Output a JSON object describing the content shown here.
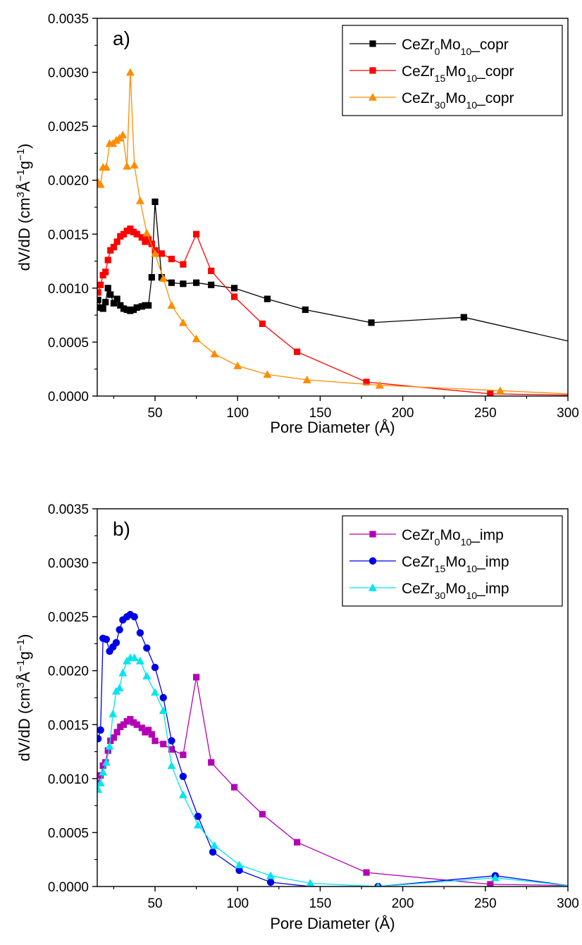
{
  "chart_data": [
    {
      "type": "line",
      "panel_label": "a)",
      "xlabel": "Pore Diameter (Å)",
      "ylabel": {
        "base": "dV/dD (cm",
        "sup1": "3",
        "mid1": "Å",
        "sup2": "−1",
        "mid2": "g",
        "sup3": "−1",
        "end": ")"
      },
      "xlim": [
        15,
        300
      ],
      "ylim": [
        0,
        0.0035
      ],
      "xticks": [
        50,
        100,
        150,
        200,
        250,
        300
      ],
      "xtick_labels": [
        "50",
        "100",
        "150",
        "200",
        "250",
        "300"
      ],
      "yticks": [
        0,
        0.0005,
        0.001,
        0.0015,
        0.002,
        0.0025,
        0.003,
        0.0035
      ],
      "ytick_labels": [
        "0.0000",
        "0.0005",
        "0.0010",
        "0.0015",
        "0.0020",
        "0.0025",
        "0.0030",
        "0.0035"
      ],
      "legend_position": "top-right",
      "grid": false,
      "series": [
        {
          "name": "CeZr0Mo10_copr",
          "label_parts": [
            "CeZr",
            "0",
            "Mo",
            "10",
            "_copr"
          ],
          "color": "#000000",
          "marker": "square",
          "x": [
            15.5,
            17,
            18.5,
            20,
            21.5,
            23,
            25,
            27,
            29,
            31,
            33,
            35,
            37,
            39,
            42,
            44,
            46,
            48,
            50,
            54,
            60,
            67,
            75,
            84,
            98,
            118,
            141,
            181,
            237,
            300
          ],
          "y": [
            0.00089,
            0.00082,
            0.00081,
            0.00087,
            0.001,
            0.00094,
            0.00086,
            0.0009,
            0.00084,
            0.00081,
            0.0008,
            0.00079,
            0.0008,
            0.00082,
            0.00083,
            0.00084,
            0.00084,
            0.0011,
            0.0018,
            0.0011,
            0.00105,
            0.00104,
            0.00105,
            0.00103,
            0.001,
            0.0009,
            0.0008,
            0.00068,
            0.00073,
            0.00051
          ]
        },
        {
          "name": "CeZr15Mo10_copr",
          "label_parts": [
            "CeZr",
            "15",
            "Mo",
            "10",
            "_copr"
          ],
          "color": "#ff0000",
          "marker": "square",
          "x": [
            15.5,
            17,
            18.5,
            20,
            21.5,
            23,
            25,
            27,
            29,
            31,
            33,
            35,
            37,
            39,
            42,
            44,
            46,
            48,
            50,
            54,
            60,
            67,
            75,
            84,
            98,
            115,
            136,
            178,
            253,
            300
          ],
          "y": [
            0.00096,
            0.00103,
            0.00112,
            0.00115,
            0.00126,
            0.00135,
            0.00138,
            0.00143,
            0.00148,
            0.0015,
            0.00153,
            0.00155,
            0.00152,
            0.0015,
            0.00147,
            0.00143,
            0.00145,
            0.00141,
            0.00135,
            0.00132,
            0.00127,
            0.00122,
            0.0015,
            0.00116,
            0.00092,
            0.00067,
            0.00041,
            0.00013,
            2e-05,
            1e-05
          ]
        },
        {
          "name": "CeZr30Mo10_copr",
          "label_parts": [
            "CeZr",
            "30",
            "Mo",
            "10",
            "_copr"
          ],
          "color": "#ff8c00",
          "marker": "triangle",
          "x": [
            15.5,
            17,
            18.5,
            20.5,
            22.5,
            24.5,
            26.5,
            28.5,
            30.5,
            33,
            35,
            37.5,
            41,
            45,
            50,
            55,
            60,
            67,
            75,
            86,
            100,
            118,
            142,
            186,
            259,
            300
          ],
          "y": [
            0.00198,
            0.00196,
            0.00212,
            0.00212,
            0.00234,
            0.00234,
            0.00237,
            0.00239,
            0.00242,
            0.00213,
            0.003,
            0.00214,
            0.00181,
            0.00151,
            0.00132,
            0.00109,
            0.00084,
            0.00068,
            0.00053,
            0.00039,
            0.00028,
            0.0002,
            0.00015,
            0.0001,
            5e-05,
            2e-05
          ]
        }
      ]
    },
    {
      "type": "line",
      "panel_label": "b)",
      "xlabel": "Pore Diameter (Å)",
      "ylabel": {
        "base": "dV/dD (cm",
        "sup1": "3",
        "mid1": "Å",
        "sup2": "−1",
        "mid2": "g",
        "sup3": "−1",
        "end": ")"
      },
      "xlim": [
        15,
        300
      ],
      "ylim": [
        0,
        0.0035
      ],
      "xticks": [
        50,
        100,
        150,
        200,
        250,
        300
      ],
      "xtick_labels": [
        "50",
        "100",
        "150",
        "200",
        "250",
        "300"
      ],
      "yticks": [
        0,
        0.0005,
        0.001,
        0.0015,
        0.002,
        0.0025,
        0.003,
        0.0035
      ],
      "ytick_labels": [
        "0.0000",
        "0.0005",
        "0.0010",
        "0.0015",
        "0.0020",
        "0.0025",
        "0.0030",
        "0.0035"
      ],
      "legend_position": "top-right",
      "grid": false,
      "series": [
        {
          "name": "CeZr0Mo10_imp",
          "label_parts": [
            "CeZr",
            "0",
            "Mo",
            "10",
            "_imp"
          ],
          "color": "#b400b4",
          "marker": "square",
          "x": [
            15.5,
            17,
            18.5,
            20,
            21.5,
            23,
            25,
            27,
            29,
            31,
            33,
            35,
            37,
            39,
            42,
            44,
            46,
            48,
            50,
            55,
            60,
            67,
            75,
            84,
            98,
            115,
            136,
            178,
            253,
            300
          ],
          "y": [
            0.00096,
            0.00103,
            0.00112,
            0.00115,
            0.00126,
            0.00135,
            0.00138,
            0.00143,
            0.00148,
            0.0015,
            0.00153,
            0.00155,
            0.00152,
            0.0015,
            0.00147,
            0.00143,
            0.00145,
            0.00141,
            0.00135,
            0.00132,
            0.00127,
            0.00122,
            0.00194,
            0.00115,
            0.00092,
            0.00067,
            0.00041,
            0.00013,
            2e-05,
            1e-05
          ]
        },
        {
          "name": "CeZr15Mo10_imp",
          "label_parts": [
            "CeZr",
            "15",
            "Mo",
            "10",
            "_imp"
          ],
          "color": "#0000e6",
          "marker": "circle",
          "x": [
            15.5,
            17,
            18.5,
            20.5,
            22.5,
            24.5,
            26.5,
            28.5,
            30.5,
            33,
            35,
            37.5,
            41,
            45,
            50,
            55,
            60,
            67,
            76,
            85,
            101,
            120,
            144,
            185,
            256,
            300
          ],
          "y": [
            0.00137,
            0.00145,
            0.0023,
            0.00229,
            0.00218,
            0.00222,
            0.00226,
            0.00238,
            0.00247,
            0.0025,
            0.00252,
            0.0025,
            0.00235,
            0.00221,
            0.00203,
            0.00175,
            0.00135,
            0.00102,
            0.00065,
            0.00032,
            0.00015,
            4e-05,
            0.0,
            0.0,
            0.0001,
            1e-05
          ]
        },
        {
          "name": "CeZr30Mo10_imp",
          "label_parts": [
            "CeZr",
            "30",
            "Mo",
            "10",
            "_imp"
          ],
          "color": "#00e5ee",
          "marker": "triangle",
          "x": [
            15.5,
            17,
            18.5,
            20.5,
            22.5,
            24.5,
            26.5,
            28.5,
            30.5,
            33,
            35,
            37.5,
            41,
            45,
            50,
            55,
            60,
            67,
            76,
            86,
            101,
            120,
            144,
            185,
            256,
            300
          ],
          "y": [
            0.0009,
            0.00096,
            0.00106,
            0.00115,
            0.0013,
            0.0016,
            0.00181,
            0.00184,
            0.00198,
            0.00209,
            0.00212,
            0.00212,
            0.00209,
            0.00195,
            0.0018,
            0.00163,
            0.00112,
            0.00085,
            0.00057,
            0.00038,
            0.0002,
            0.0001,
            3e-05,
            0.0,
            8e-05,
            1e-05
          ]
        }
      ]
    }
  ]
}
